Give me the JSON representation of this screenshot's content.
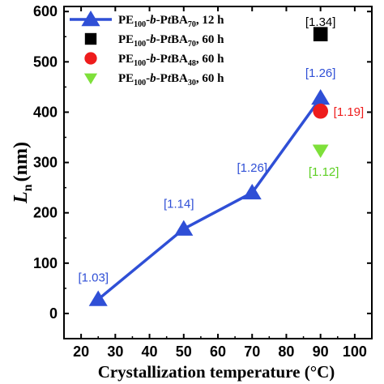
{
  "chart_data": {
    "type": "scatter",
    "xlabel": "Crystallization  temperature (°C)",
    "ylabel": "L_n (nm)",
    "ylabel_main": "L",
    "ylabel_sub": "n",
    "ylabel_unit": "(nm)",
    "xlim": [
      15,
      105
    ],
    "ylim": [
      -50,
      610
    ],
    "x_ticks": [
      20,
      30,
      40,
      50,
      60,
      70,
      80,
      90,
      100
    ],
    "y_ticks": [
      0,
      100,
      200,
      300,
      400,
      500,
      600
    ],
    "legend_position": "top-left",
    "series": [
      {
        "name": "PE100-b-PtBA70, 12 h",
        "legend_parts": [
          {
            "t": "PE"
          },
          {
            "t": "100",
            "sub": true
          },
          {
            "t": "-"
          },
          {
            "t": "b",
            "italic": true
          },
          {
            "t": "-P"
          },
          {
            "t": "t",
            "italic": true
          },
          {
            "t": "BA"
          },
          {
            "t": "70",
            "sub": true
          },
          {
            "t": ", 12 h"
          }
        ],
        "marker": "triangle-up",
        "color": "#2f4fd6",
        "line": true,
        "x": [
          25,
          50,
          70,
          90
        ],
        "y": [
          28,
          168,
          240,
          428
        ],
        "labels": [
          "[1.03]",
          "[1.14]",
          "[1.26]",
          "[1.26]"
        ]
      },
      {
        "name": "PE100-b-PtBA70, 60 h",
        "legend_parts": [
          {
            "t": "PE"
          },
          {
            "t": "100",
            "sub": true
          },
          {
            "t": "-"
          },
          {
            "t": "b",
            "italic": true
          },
          {
            "t": "-P"
          },
          {
            "t": "t",
            "italic": true
          },
          {
            "t": "BA"
          },
          {
            "t": "70",
            "sub": true
          },
          {
            "t": ", 60 h"
          }
        ],
        "marker": "square",
        "color": "#000000",
        "line": false,
        "x": [
          90
        ],
        "y": [
          555
        ],
        "labels": [
          "[1.34]"
        ]
      },
      {
        "name": "PE100-b-PtBA48, 60 h",
        "legend_parts": [
          {
            "t": "PE"
          },
          {
            "t": "100",
            "sub": true
          },
          {
            "t": "-"
          },
          {
            "t": "b",
            "italic": true
          },
          {
            "t": "-P"
          },
          {
            "t": "t",
            "italic": true
          },
          {
            "t": "BA"
          },
          {
            "t": "48",
            "sub": true
          },
          {
            "t": ", 60 h"
          }
        ],
        "marker": "circle",
        "color": "#ee1c1c",
        "line": false,
        "x": [
          90
        ],
        "y": [
          402
        ],
        "labels": [
          "[1.19]"
        ]
      },
      {
        "name": "PE100-b-PtBA30, 60 h",
        "legend_parts": [
          {
            "t": "PE"
          },
          {
            "t": "100",
            "sub": true
          },
          {
            "t": "-"
          },
          {
            "t": "b",
            "italic": true
          },
          {
            "t": "-P"
          },
          {
            "t": "t",
            "italic": true
          },
          {
            "t": "BA"
          },
          {
            "t": "30",
            "sub": true
          },
          {
            "t": ", 60 h"
          }
        ],
        "marker": "triangle-down",
        "color": "#7ee03a",
        "line": false,
        "x": [
          90
        ],
        "y": [
          325
        ],
        "labels": [
          "[1.12]"
        ]
      }
    ]
  }
}
